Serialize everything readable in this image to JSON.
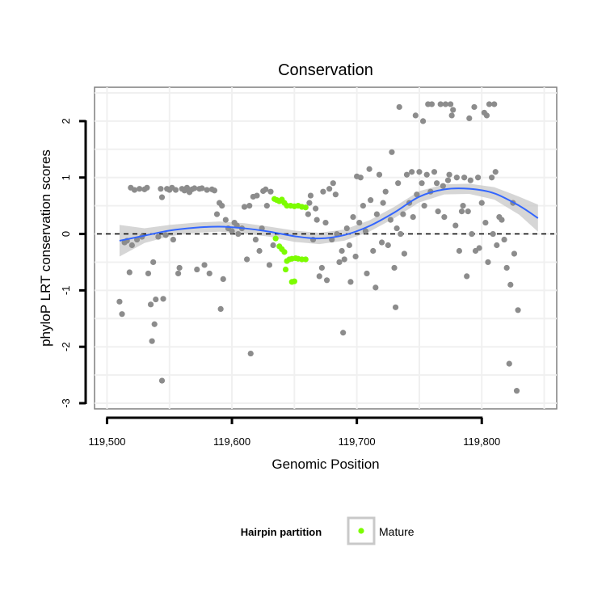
{
  "chart_data": {
    "type": "scatter",
    "title": "Conservation",
    "xlabel": "Genomic Position",
    "ylabel": "phyloP LRT conservation scores",
    "xlim": [
      119490,
      119860
    ],
    "ylim": [
      -3.1,
      2.6
    ],
    "x_ticks": [
      119500,
      119600,
      119700,
      119800
    ],
    "x_tick_labels": [
      "119,500",
      "119,600",
      "119,700",
      "119,800"
    ],
    "y_ticks": [
      -3,
      -2,
      -1,
      0,
      1,
      2
    ],
    "y_tick_labels": [
      "-3",
      "-2",
      "-1",
      "0",
      "1",
      "2"
    ],
    "grid": true,
    "legend": {
      "title": "Hairpin partition",
      "position": "bottom",
      "entries": [
        {
          "label": "Mature",
          "color": "#7CFC00"
        }
      ]
    },
    "reference_line": {
      "y": 0,
      "style": "dashed",
      "color": "#000000"
    },
    "colors": {
      "other": "#8c8c8c",
      "mature": "#7CFC00",
      "smooth": "#3366ff",
      "band": "#c8c8c8"
    },
    "series": [
      {
        "name": "Mature",
        "points": [
          [
            119634,
            0.62
          ],
          [
            119636,
            0.6
          ],
          [
            119638,
            0.58
          ],
          [
            119640,
            0.61
          ],
          [
            119642,
            0.55
          ],
          [
            119644,
            0.5
          ],
          [
            119647,
            0.5
          ],
          [
            119650,
            0.49
          ],
          [
            119653,
            0.5
          ],
          [
            119656,
            0.48
          ],
          [
            119659,
            0.47
          ],
          [
            119635,
            -0.08
          ],
          [
            119638,
            -0.22
          ],
          [
            119640,
            -0.27
          ],
          [
            119642,
            -0.32
          ],
          [
            119644,
            -0.48
          ],
          [
            119646,
            -0.45
          ],
          [
            119648,
            -0.44
          ],
          [
            119651,
            -0.43
          ],
          [
            119653,
            -0.44
          ],
          [
            119656,
            -0.45
          ],
          [
            119659,
            -0.45
          ],
          [
            119643,
            -0.63
          ],
          [
            119648,
            -0.85
          ],
          [
            119650,
            -0.84
          ]
        ]
      },
      {
        "points": [
          [
            119510,
            -1.2
          ],
          [
            119512,
            -1.42
          ],
          [
            119514,
            -0.15
          ],
          [
            119516,
            -0.12
          ],
          [
            119518,
            -0.68
          ],
          [
            119520,
            -0.2
          ],
          [
            119519,
            0.82
          ],
          [
            119522,
            0.78
          ],
          [
            119524,
            -0.1
          ],
          [
            119526,
            0.8
          ],
          [
            119528,
            -0.05
          ],
          [
            119530,
            0.79
          ],
          [
            119532,
            0.82
          ],
          [
            119533,
            -0.7
          ],
          [
            119535,
            -1.25
          ],
          [
            119536,
            -1.9
          ],
          [
            119537,
            -0.5
          ],
          [
            119538,
            -1.6
          ],
          [
            119539,
            -1.16
          ],
          [
            119541,
            -0.05
          ],
          [
            119543,
            0.8
          ],
          [
            119544,
            0.65
          ],
          [
            119544,
            -2.6
          ],
          [
            119545,
            -1.15
          ],
          [
            119547,
            -0.02
          ],
          [
            119548,
            0.8
          ],
          [
            119550,
            0.78
          ],
          [
            119552,
            0.82
          ],
          [
            119553,
            -0.1
          ],
          [
            119555,
            0.78
          ],
          [
            119557,
            -0.7
          ],
          [
            119558,
            -0.6
          ],
          [
            119560,
            0.8
          ],
          [
            119562,
            0.77
          ],
          [
            119564,
            0.82
          ],
          [
            119566,
            0.74
          ],
          [
            119568,
            0.79
          ],
          [
            119570,
            0.81
          ],
          [
            119572,
            -0.63
          ],
          [
            119574,
            0.8
          ],
          [
            119576,
            0.81
          ],
          [
            119578,
            -0.55
          ],
          [
            119580,
            0.78
          ],
          [
            119582,
            -0.7
          ],
          [
            119584,
            0.79
          ],
          [
            119586,
            0.77
          ],
          [
            119588,
            0.35
          ],
          [
            119590,
            0.55
          ],
          [
            119591,
            -1.33
          ],
          [
            119592,
            0.5
          ],
          [
            119593,
            -0.8
          ],
          [
            119595,
            0.25
          ],
          [
            119597,
            0.1
          ],
          [
            119600,
            0.05
          ],
          [
            119602,
            0.2
          ],
          [
            119604,
            0.15
          ],
          [
            119605,
            0.0
          ],
          [
            119608,
            0.1
          ],
          [
            119610,
            0.48
          ],
          [
            119612,
            -0.45
          ],
          [
            119614,
            0.5
          ],
          [
            119615,
            -2.12
          ],
          [
            119617,
            0.66
          ],
          [
            119619,
            -0.1
          ],
          [
            119620,
            0.68
          ],
          [
            119622,
            -0.3
          ],
          [
            119624,
            0.1
          ],
          [
            119625,
            0.76
          ],
          [
            119627,
            0.79
          ],
          [
            119628,
            0.5
          ],
          [
            119630,
            -0.55
          ],
          [
            119631,
            0.75
          ],
          [
            119633,
            -0.2
          ],
          [
            119661,
            0.35
          ],
          [
            119662,
            0.55
          ],
          [
            119663,
            0.68
          ],
          [
            119665,
            -0.1
          ],
          [
            119667,
            0.45
          ],
          [
            119668,
            0.25
          ],
          [
            119670,
            -0.75
          ],
          [
            119672,
            -0.6
          ],
          [
            119673,
            0.75
          ],
          [
            119675,
            0.2
          ],
          [
            119676,
            -0.82
          ],
          [
            119678,
            0.8
          ],
          [
            119680,
            -0.1
          ],
          [
            119681,
            0.9
          ],
          [
            119683,
            0.7
          ],
          [
            119684,
            0.0
          ],
          [
            119686,
            -0.5
          ],
          [
            119688,
            -0.3
          ],
          [
            119689,
            -1.75
          ],
          [
            119690,
            -0.45
          ],
          [
            119692,
            0.1
          ],
          [
            119694,
            -0.2
          ],
          [
            119695,
            -0.85
          ],
          [
            119697,
            0.3
          ],
          [
            119699,
            -0.4
          ],
          [
            119700,
            1.02
          ],
          [
            119702,
            0.2
          ],
          [
            119703,
            1.0
          ],
          [
            119705,
            0.5
          ],
          [
            119707,
            0.05
          ],
          [
            119708,
            -0.7
          ],
          [
            119710,
            1.15
          ],
          [
            119711,
            0.6
          ],
          [
            119713,
            -0.3
          ],
          [
            119715,
            -0.95
          ],
          [
            119716,
            0.35
          ],
          [
            119718,
            1.05
          ],
          [
            119720,
            -0.15
          ],
          [
            119721,
            0.55
          ],
          [
            119723,
            0.75
          ],
          [
            119725,
            -0.2
          ],
          [
            119727,
            0.25
          ],
          [
            119728,
            1.45
          ],
          [
            119730,
            -0.6
          ],
          [
            119731,
            -1.3
          ],
          [
            119732,
            0.1
          ],
          [
            119733,
            0.9
          ],
          [
            119734,
            2.25
          ],
          [
            119735,
            0.0
          ],
          [
            119737,
            0.35
          ],
          [
            119738,
            -0.35
          ],
          [
            119740,
            1.05
          ],
          [
            119742,
            0.55
          ],
          [
            119744,
            1.1
          ],
          [
            119745,
            0.3
          ],
          [
            119747,
            2.1
          ],
          [
            119748,
            0.7
          ],
          [
            119750,
            1.1
          ],
          [
            119752,
            0.9
          ],
          [
            119753,
            2.0
          ],
          [
            119754,
            0.5
          ],
          [
            119756,
            1.05
          ],
          [
            119757,
            2.3
          ],
          [
            119759,
            0.75
          ],
          [
            119760,
            2.3
          ],
          [
            119762,
            1.1
          ],
          [
            119764,
            0.9
          ],
          [
            119765,
            0.4
          ],
          [
            119767,
            2.3
          ],
          [
            119769,
            0.85
          ],
          [
            119770,
            0.3
          ],
          [
            119771,
            2.3
          ],
          [
            119773,
            0.95
          ],
          [
            119774,
            1.05
          ],
          [
            119775,
            2.3
          ],
          [
            119776,
            2.1
          ],
          [
            119777,
            2.2
          ],
          [
            119779,
            0.15
          ],
          [
            119780,
            1.0
          ],
          [
            119782,
            -0.3
          ],
          [
            119784,
            0.4
          ],
          [
            119785,
            0.5
          ],
          [
            119786,
            1.0
          ],
          [
            119788,
            -0.75
          ],
          [
            119789,
            0.4
          ],
          [
            119790,
            2.05
          ],
          [
            119791,
            0.95
          ],
          [
            119792,
            0.0
          ],
          [
            119794,
            2.25
          ],
          [
            119795,
            -0.3
          ],
          [
            119797,
            1.0
          ],
          [
            119798,
            -0.25
          ],
          [
            119800,
            0.55
          ],
          [
            119802,
            2.15
          ],
          [
            119803,
            0.2
          ],
          [
            119804,
            2.1
          ],
          [
            119805,
            -0.5
          ],
          [
            119806,
            2.3
          ],
          [
            119808,
            1.0
          ],
          [
            119809,
            0.0
          ],
          [
            119810,
            2.3
          ],
          [
            119811,
            1.1
          ],
          [
            119812,
            -0.2
          ],
          [
            119814,
            0.3
          ],
          [
            119816,
            0.25
          ],
          [
            119818,
            -0.1
          ],
          [
            119820,
            -0.6
          ],
          [
            119822,
            -2.3
          ],
          [
            119823,
            -0.9
          ],
          [
            119825,
            0.55
          ],
          [
            119826,
            -0.35
          ],
          [
            119828,
            -2.78
          ],
          [
            119829,
            -1.35
          ]
        ]
      }
    ],
    "smooth": {
      "x": [
        119510,
        119530,
        119550,
        119570,
        119590,
        119610,
        119630,
        119650,
        119670,
        119690,
        119710,
        119730,
        119750,
        119770,
        119790,
        119810,
        119830,
        119845
      ],
      "y": [
        -0.12,
        -0.03,
        0.06,
        0.11,
        0.13,
        0.1,
        0.04,
        -0.04,
        -0.08,
        -0.02,
        0.14,
        0.38,
        0.66,
        0.79,
        0.8,
        0.72,
        0.5,
        0.28
      ],
      "band": [
        0.28,
        0.13,
        0.1,
        0.09,
        0.09,
        0.09,
        0.09,
        0.1,
        0.1,
        0.1,
        0.1,
        0.1,
        0.1,
        0.09,
        0.09,
        0.11,
        0.16,
        0.24
      ]
    }
  }
}
